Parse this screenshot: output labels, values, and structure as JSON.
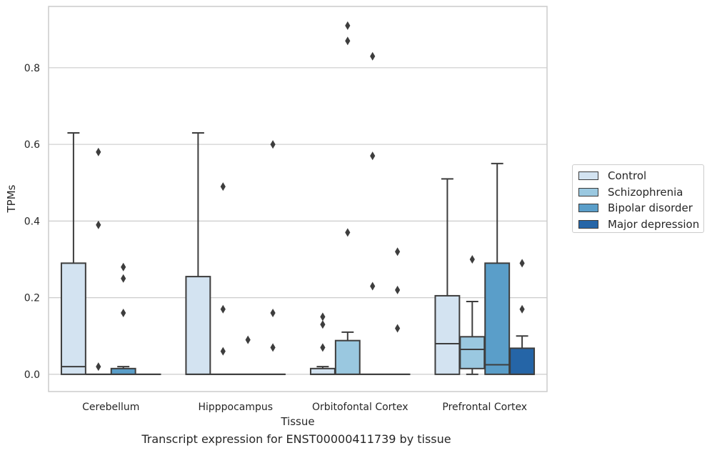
{
  "chart_data": {
    "type": "boxplot",
    "caption": "Transcript expression for ENST00000411739 by tissue",
    "xlabel": "Tissue",
    "ylabel": "TPMs",
    "ylim": [
      -0.045,
      0.96
    ],
    "yticks": [
      "0.0",
      "0.2",
      "0.4",
      "0.6",
      "0.8"
    ],
    "ytick_values": [
      0.0,
      0.2,
      0.4,
      0.6,
      0.8
    ],
    "grid": "horizontal",
    "legend_position": "right-outside",
    "categories": [
      "Cerebellum",
      "Hipppocampus",
      "Orbitofontal Cortex",
      "Prefrontal Cortex"
    ],
    "series": [
      {
        "name": "Control",
        "color": "#d3e3f1",
        "boxes": [
          {
            "category": "Cerebellum",
            "q1": 0.0,
            "median": 0.02,
            "q3": 0.29,
            "whisker_low": 0.0,
            "whisker_high": 0.63,
            "outliers": []
          },
          {
            "category": "Hipppocampus",
            "q1": 0.0,
            "median": 0.0,
            "q3": 0.255,
            "whisker_low": 0.0,
            "whisker_high": 0.63,
            "outliers": []
          },
          {
            "category": "Orbitofontal Cortex",
            "q1": 0.0,
            "median": 0.0,
            "q3": 0.015,
            "whisker_low": 0.0,
            "whisker_high": 0.02,
            "outliers": [
              0.07,
              0.13,
              0.15
            ]
          },
          {
            "category": "Prefrontal Cortex",
            "q1": 0.0,
            "median": 0.08,
            "q3": 0.205,
            "whisker_low": 0.0,
            "whisker_high": 0.51,
            "outliers": []
          }
        ]
      },
      {
        "name": "Schizophrenia",
        "color": "#9ac8e0",
        "boxes": [
          {
            "category": "Cerebellum",
            "q1": 0.0,
            "median": 0.0,
            "q3": 0.0,
            "whisker_low": 0.0,
            "whisker_high": 0.0,
            "outliers": [
              0.02,
              0.39,
              0.58
            ]
          },
          {
            "category": "Hipppocampus",
            "q1": 0.0,
            "median": 0.0,
            "q3": 0.0,
            "whisker_low": 0.0,
            "whisker_high": 0.0,
            "outliers": [
              0.06,
              0.17,
              0.49
            ]
          },
          {
            "category": "Orbitofontal Cortex",
            "q1": 0.0,
            "median": 0.0,
            "q3": 0.088,
            "whisker_low": 0.0,
            "whisker_high": 0.11,
            "outliers": [
              0.37,
              0.87,
              0.91
            ]
          },
          {
            "category": "Prefrontal Cortex",
            "q1": 0.015,
            "median": 0.065,
            "q3": 0.098,
            "whisker_low": 0.0,
            "whisker_high": 0.19,
            "outliers": [
              0.3
            ]
          }
        ]
      },
      {
        "name": "Bipolar disorder",
        "color": "#5a9ec9",
        "boxes": [
          {
            "category": "Cerebellum",
            "q1": 0.0,
            "median": 0.0,
            "q3": 0.015,
            "whisker_low": 0.0,
            "whisker_high": 0.02,
            "outliers": [
              0.16,
              0.25,
              0.28
            ]
          },
          {
            "category": "Hipppocampus",
            "q1": 0.0,
            "median": 0.0,
            "q3": 0.0,
            "whisker_low": 0.0,
            "whisker_high": 0.0,
            "outliers": [
              0.09
            ]
          },
          {
            "category": "Orbitofontal Cortex",
            "q1": 0.0,
            "median": 0.0,
            "q3": 0.0,
            "whisker_low": 0.0,
            "whisker_high": 0.0,
            "outliers": [
              0.23,
              0.57,
              0.83
            ]
          },
          {
            "category": "Prefrontal Cortex",
            "q1": 0.0,
            "median": 0.025,
            "q3": 0.29,
            "whisker_low": 0.0,
            "whisker_high": 0.55,
            "outliers": []
          }
        ]
      },
      {
        "name": "Major depression",
        "color": "#2565a7",
        "boxes": [
          {
            "category": "Cerebellum",
            "q1": 0.0,
            "median": 0.0,
            "q3": 0.0,
            "whisker_low": 0.0,
            "whisker_high": 0.0,
            "outliers": []
          },
          {
            "category": "Hipppocampus",
            "q1": 0.0,
            "median": 0.0,
            "q3": 0.0,
            "whisker_low": 0.0,
            "whisker_high": 0.0,
            "outliers": [
              0.07,
              0.16,
              0.6
            ]
          },
          {
            "category": "Orbitofontal Cortex",
            "q1": 0.0,
            "median": 0.0,
            "q3": 0.0,
            "whisker_low": 0.0,
            "whisker_high": 0.0,
            "outliers": [
              0.12,
              0.22,
              0.32
            ]
          },
          {
            "category": "Prefrontal Cortex",
            "q1": 0.0,
            "median": 0.0,
            "q3": 0.068,
            "whisker_low": 0.0,
            "whisker_high": 0.1,
            "outliers": [
              0.17,
              0.29
            ]
          }
        ]
      }
    ]
  },
  "legend": {
    "items": [
      {
        "label": "Control",
        "color": "#d3e3f1"
      },
      {
        "label": "Schizophrenia",
        "color": "#9ac8e0"
      },
      {
        "label": "Bipolar disorder",
        "color": "#5a9ec9"
      },
      {
        "label": "Major depression",
        "color": "#2565a7"
      }
    ]
  }
}
